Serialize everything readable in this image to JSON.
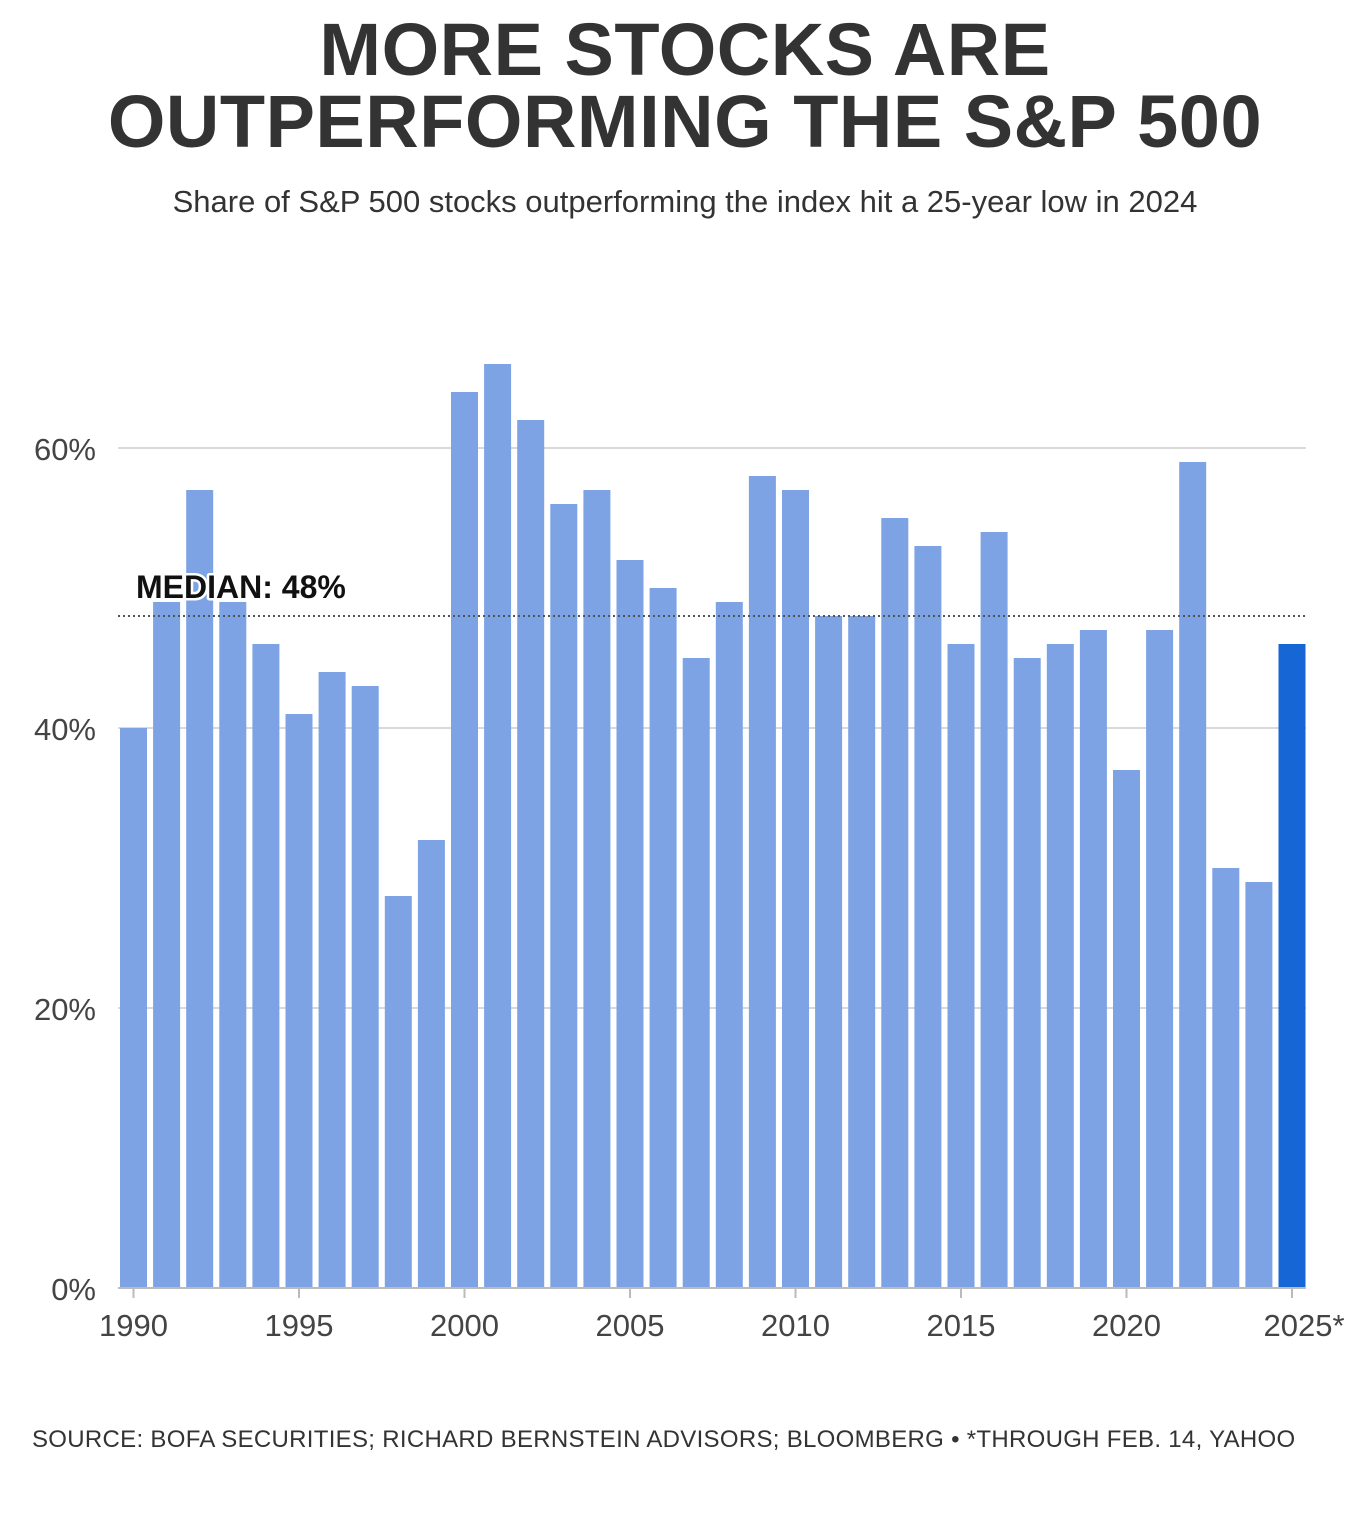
{
  "header": {
    "title_line1": "MORE STOCKS ARE",
    "title_line2": "OUTPERFORMING THE S&P 500",
    "subtitle": "Share of S&P 500 stocks outperforming the index hit a 25-year low in 2024"
  },
  "footer": {
    "source": "SOURCE: BOFA SECURITIES; RICHARD BERNSTEIN ADVISORS; BLOOMBERG • *THROUGH FEB. 14, YAHOO"
  },
  "colors": {
    "bar": "#7da3e4",
    "highlight": "#1766d6",
    "grid": "#d9d9d9",
    "median_line": "#555555"
  },
  "chart_data": {
    "type": "bar",
    "x": [
      1990,
      1991,
      1992,
      1993,
      1994,
      1995,
      1996,
      1997,
      1998,
      1999,
      2000,
      2001,
      2002,
      2003,
      2004,
      2005,
      2006,
      2007,
      2008,
      2009,
      2010,
      2011,
      2012,
      2013,
      2014,
      2015,
      2016,
      2017,
      2018,
      2019,
      2020,
      2021,
      2022,
      2023,
      2024,
      2025
    ],
    "values": [
      40,
      49,
      57,
      49,
      46,
      41,
      44,
      43,
      28,
      32,
      64,
      66,
      62,
      56,
      57,
      52,
      50,
      45,
      49,
      58,
      57,
      48,
      48,
      55,
      53,
      46,
      54,
      45,
      46,
      47,
      37,
      47,
      59,
      30,
      29,
      46
    ],
    "highlight_index": 35,
    "ylim": [
      0,
      66
    ],
    "yticks": [
      0,
      20,
      40,
      60
    ],
    "ytick_labels": [
      "0%",
      "20%",
      "40%",
      "60%"
    ],
    "xticks": [
      1990,
      1995,
      2000,
      2005,
      2010,
      2015,
      2020,
      2025
    ],
    "xtick_labels": [
      "1990",
      "1995",
      "2000",
      "2005",
      "2010",
      "2015",
      "2020",
      "2025*"
    ],
    "median": {
      "value": 48,
      "label": "MEDIAN: 48%"
    },
    "grid": true
  }
}
